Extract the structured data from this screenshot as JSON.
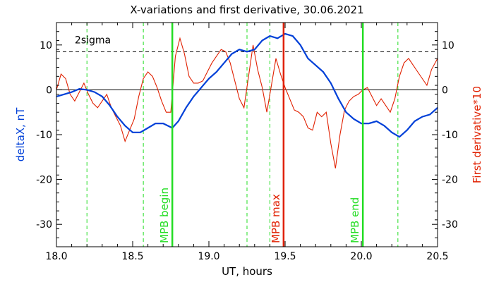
{
  "chart_data": {
    "type": "line",
    "title": "X-variations and first derivative, 30.06.2021",
    "xlabel": "UT, hours",
    "ylabel_left": "deltaX, nT",
    "ylabel_right": "First derivative*10",
    "xlim": [
      18.0,
      20.5
    ],
    "ylim": [
      -35,
      15
    ],
    "xticks": [
      18.0,
      18.5,
      19.0,
      19.5,
      20.0,
      20.5
    ],
    "xtick_labels": [
      "18.0",
      "18.5",
      "19.0",
      "19.5",
      "20.0",
      "20.5"
    ],
    "yticks": [
      -30,
      -20,
      -10,
      0,
      10
    ],
    "ytick_labels": [
      "-30",
      "-20",
      "-10",
      "0",
      "10"
    ],
    "colors": {
      "deltaX": "#0040d8",
      "derivative": "#e02000",
      "mpb_edges": "#22dd22",
      "mpb_max": "#e02000",
      "axis": "#000000"
    },
    "sigma": {
      "label": "2sigma",
      "value": 8.5
    },
    "markers": [
      {
        "label": "MPB begin",
        "x": 18.76,
        "color": "#22dd22"
      },
      {
        "label": "MPB max",
        "x": 19.49,
        "color": "#e02000"
      },
      {
        "label": "MPB end",
        "x": 20.01,
        "color": "#22dd22"
      }
    ],
    "dashed_verticals": [
      18.2,
      18.57,
      19.25,
      19.4,
      20.24
    ],
    "series": [
      {
        "name": "deltaX, nT",
        "color": "#0040d8",
        "x": [
          18.0,
          18.05,
          18.1,
          18.15,
          18.2,
          18.25,
          18.3,
          18.35,
          18.4,
          18.45,
          18.5,
          18.55,
          18.6,
          18.65,
          18.7,
          18.76,
          18.8,
          18.85,
          18.9,
          18.95,
          19.0,
          19.05,
          19.1,
          19.15,
          19.2,
          19.25,
          19.3,
          19.35,
          19.4,
          19.45,
          19.5,
          19.55,
          19.6,
          19.65,
          19.7,
          19.75,
          19.8,
          19.85,
          19.9,
          19.95,
          20.0,
          20.05,
          20.1,
          20.15,
          20.2,
          20.25,
          20.3,
          20.35,
          20.4,
          20.45,
          20.5
        ],
        "y": [
          -1.5,
          -1.0,
          -0.5,
          0.2,
          0.0,
          -0.5,
          -1.5,
          -3.5,
          -6.0,
          -8.0,
          -9.5,
          -9.5,
          -8.5,
          -7.5,
          -7.5,
          -8.5,
          -7.0,
          -4.0,
          -1.5,
          0.5,
          2.5,
          4.0,
          6.0,
          8.0,
          9.0,
          8.5,
          9.0,
          11.0,
          12.0,
          11.5,
          12.5,
          12.0,
          10.0,
          7.0,
          5.5,
          4.0,
          1.5,
          -2.0,
          -5.0,
          -6.5,
          -7.5,
          -7.5,
          -7.0,
          -8.0,
          -9.5,
          -10.5,
          -9.0,
          -7.0,
          -6.0,
          -5.5,
          -4.0
        ]
      },
      {
        "name": "First derivative*10",
        "color": "#e02000",
        "x": [
          18.0,
          18.03,
          18.06,
          18.09,
          18.12,
          18.15,
          18.18,
          18.21,
          18.24,
          18.27,
          18.3,
          18.33,
          18.36,
          18.39,
          18.42,
          18.45,
          18.48,
          18.51,
          18.54,
          18.57,
          18.6,
          18.63,
          18.66,
          18.69,
          18.72,
          18.75,
          18.78,
          18.81,
          18.84,
          18.87,
          18.9,
          18.93,
          18.96,
          18.99,
          19.02,
          19.05,
          19.08,
          19.11,
          19.14,
          19.17,
          19.2,
          19.23,
          19.26,
          19.29,
          19.32,
          19.35,
          19.38,
          19.41,
          19.44,
          19.47,
          19.5,
          19.53,
          19.56,
          19.59,
          19.62,
          19.65,
          19.68,
          19.71,
          19.74,
          19.77,
          19.8,
          19.83,
          19.86,
          19.89,
          19.92,
          19.95,
          19.98,
          20.01,
          20.04,
          20.07,
          20.1,
          20.13,
          20.16,
          20.19,
          20.22,
          20.25,
          20.28,
          20.31,
          20.34,
          20.37,
          20.4,
          20.43,
          20.46,
          20.5
        ],
        "y": [
          0.0,
          3.5,
          2.5,
          -1.0,
          -2.5,
          -0.5,
          1.5,
          -1.0,
          -3.0,
          -4.0,
          -2.5,
          -1.0,
          -4.0,
          -6.0,
          -8.0,
          -11.5,
          -9.0,
          -6.5,
          -1.5,
          2.5,
          4.0,
          3.0,
          0.5,
          -2.5,
          -5.0,
          -5.0,
          7.5,
          11.5,
          8.0,
          3.0,
          1.5,
          1.5,
          2.0,
          4.0,
          6.0,
          7.5,
          9.0,
          8.5,
          6.0,
          2.0,
          -2.0,
          -4.0,
          3.0,
          10.0,
          4.5,
          0.5,
          -5.0,
          1.0,
          7.0,
          3.5,
          0.5,
          -2.0,
          -4.5,
          -5.0,
          -6.0,
          -8.5,
          -9.0,
          -5.0,
          -6.0,
          -5.0,
          -12.0,
          -17.5,
          -10.0,
          -4.5,
          -2.5,
          -1.5,
          -1.0,
          0.0,
          0.5,
          -1.5,
          -3.5,
          -2.0,
          -3.5,
          -5.0,
          -2.0,
          3.0,
          6.0,
          7.0,
          5.5,
          4.0,
          2.5,
          1.0,
          4.5,
          7.0
        ]
      }
    ]
  }
}
